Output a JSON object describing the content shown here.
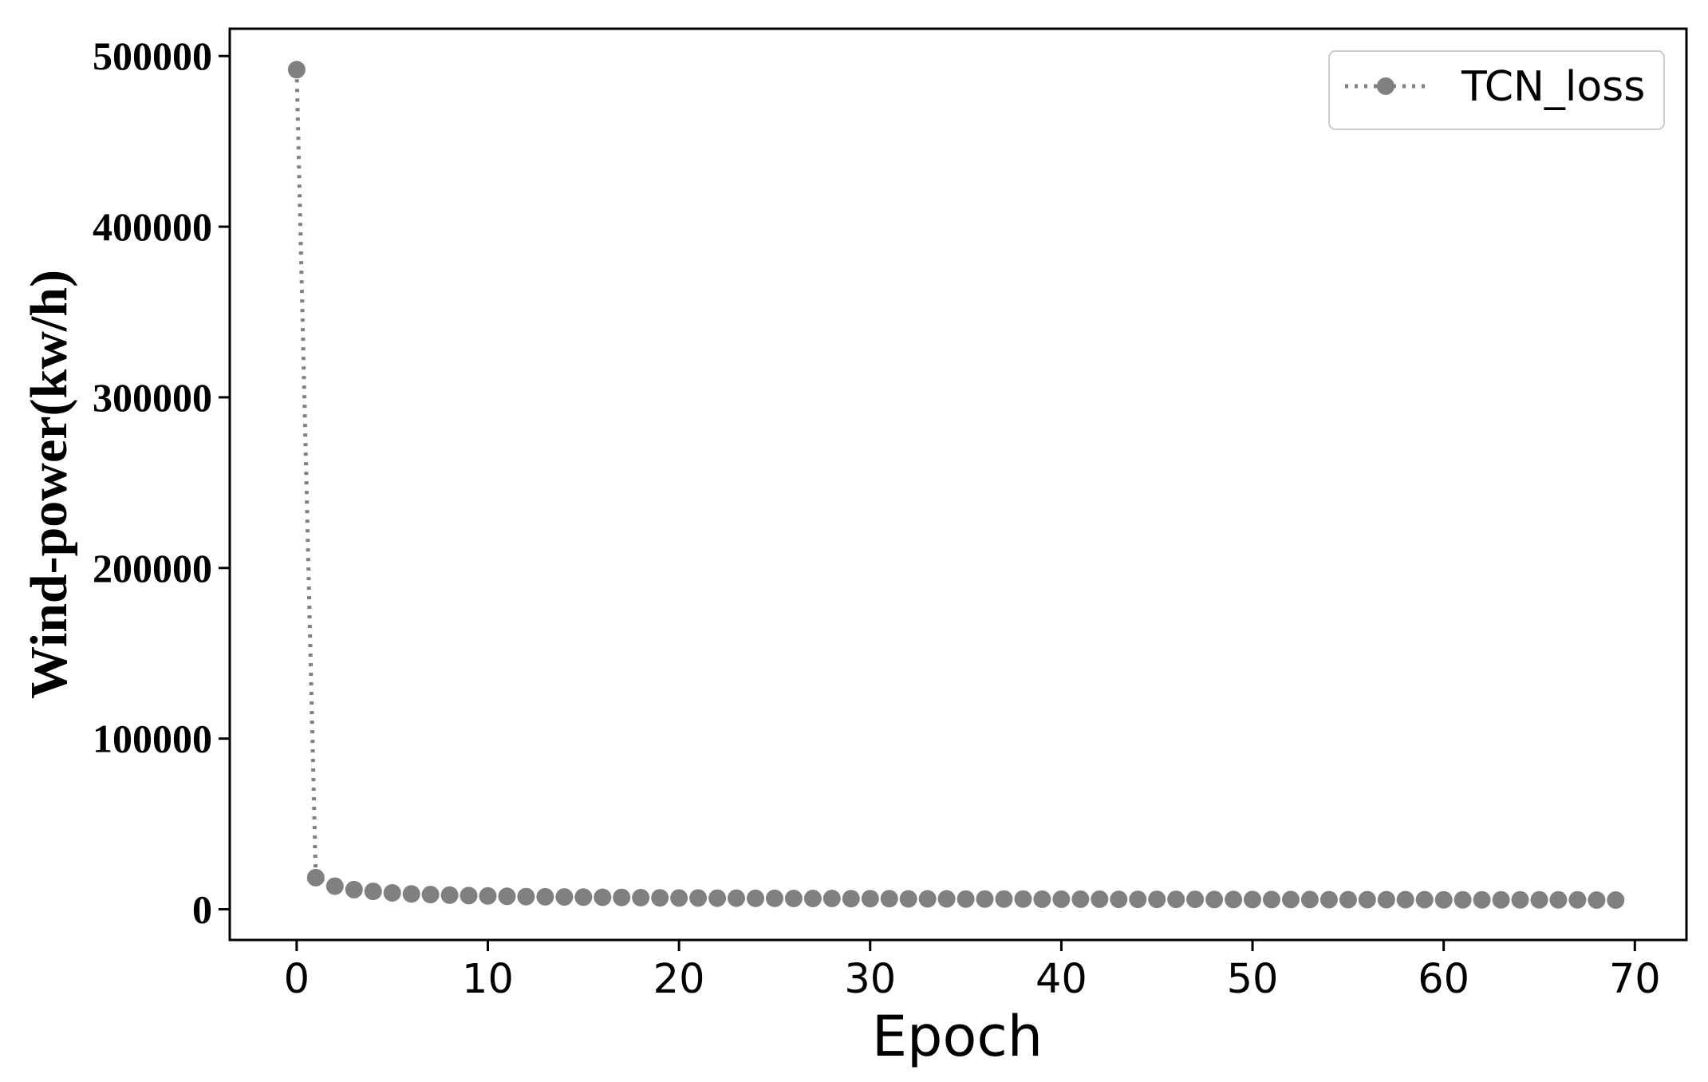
{
  "chart_data": {
    "type": "line",
    "title": "",
    "xlabel": "Epoch",
    "ylabel": "Wind-power(kw/h)",
    "xlim": [
      -3.5,
      72.7
    ],
    "ylim": [
      -18000,
      516000
    ],
    "xticks": [
      0,
      10,
      20,
      30,
      40,
      50,
      60,
      70
    ],
    "yticks": [
      0,
      100000,
      200000,
      300000,
      400000,
      500000
    ],
    "xtick_labels": [
      "0",
      "10",
      "20",
      "30",
      "40",
      "50",
      "60",
      "70"
    ],
    "ytick_labels": [
      "0",
      "100000",
      "200000",
      "300000",
      "400000",
      "500000"
    ],
    "grid": false,
    "legend_position": "top-right",
    "line_style": "dotted",
    "marker": "circle",
    "series": [
      {
        "name": "TCN_loss",
        "color": "#808080",
        "x": [
          0,
          1,
          2,
          3,
          4,
          5,
          6,
          7,
          8,
          9,
          10,
          11,
          12,
          13,
          14,
          15,
          16,
          17,
          18,
          19,
          20,
          21,
          22,
          23,
          24,
          25,
          26,
          27,
          28,
          29,
          30,
          31,
          32,
          33,
          34,
          35,
          36,
          37,
          38,
          39,
          40,
          41,
          42,
          43,
          44,
          45,
          46,
          47,
          48,
          49,
          50,
          51,
          52,
          53,
          54,
          55,
          56,
          57,
          58,
          59,
          60,
          61,
          62,
          63,
          64,
          65,
          66,
          67,
          68,
          69
        ],
        "values": [
          492000,
          18500,
          13500,
          11500,
          10500,
          9600,
          9000,
          8600,
          8300,
          8000,
          7800,
          7600,
          7400,
          7300,
          7200,
          7100,
          7000,
          6900,
          6800,
          6700,
          6600,
          6600,
          6500,
          6500,
          6400,
          6400,
          6300,
          6300,
          6300,
          6200,
          6200,
          6200,
          6100,
          6100,
          6100,
          6000,
          6000,
          6000,
          6000,
          5900,
          5900,
          5900,
          5900,
          5800,
          5800,
          5800,
          5800,
          5800,
          5700,
          5700,
          5700,
          5700,
          5700,
          5700,
          5600,
          5600,
          5600,
          5600,
          5600,
          5600,
          5500,
          5500,
          5500,
          5500,
          5500,
          5500,
          5500,
          5500,
          5400,
          5400
        ]
      }
    ]
  }
}
